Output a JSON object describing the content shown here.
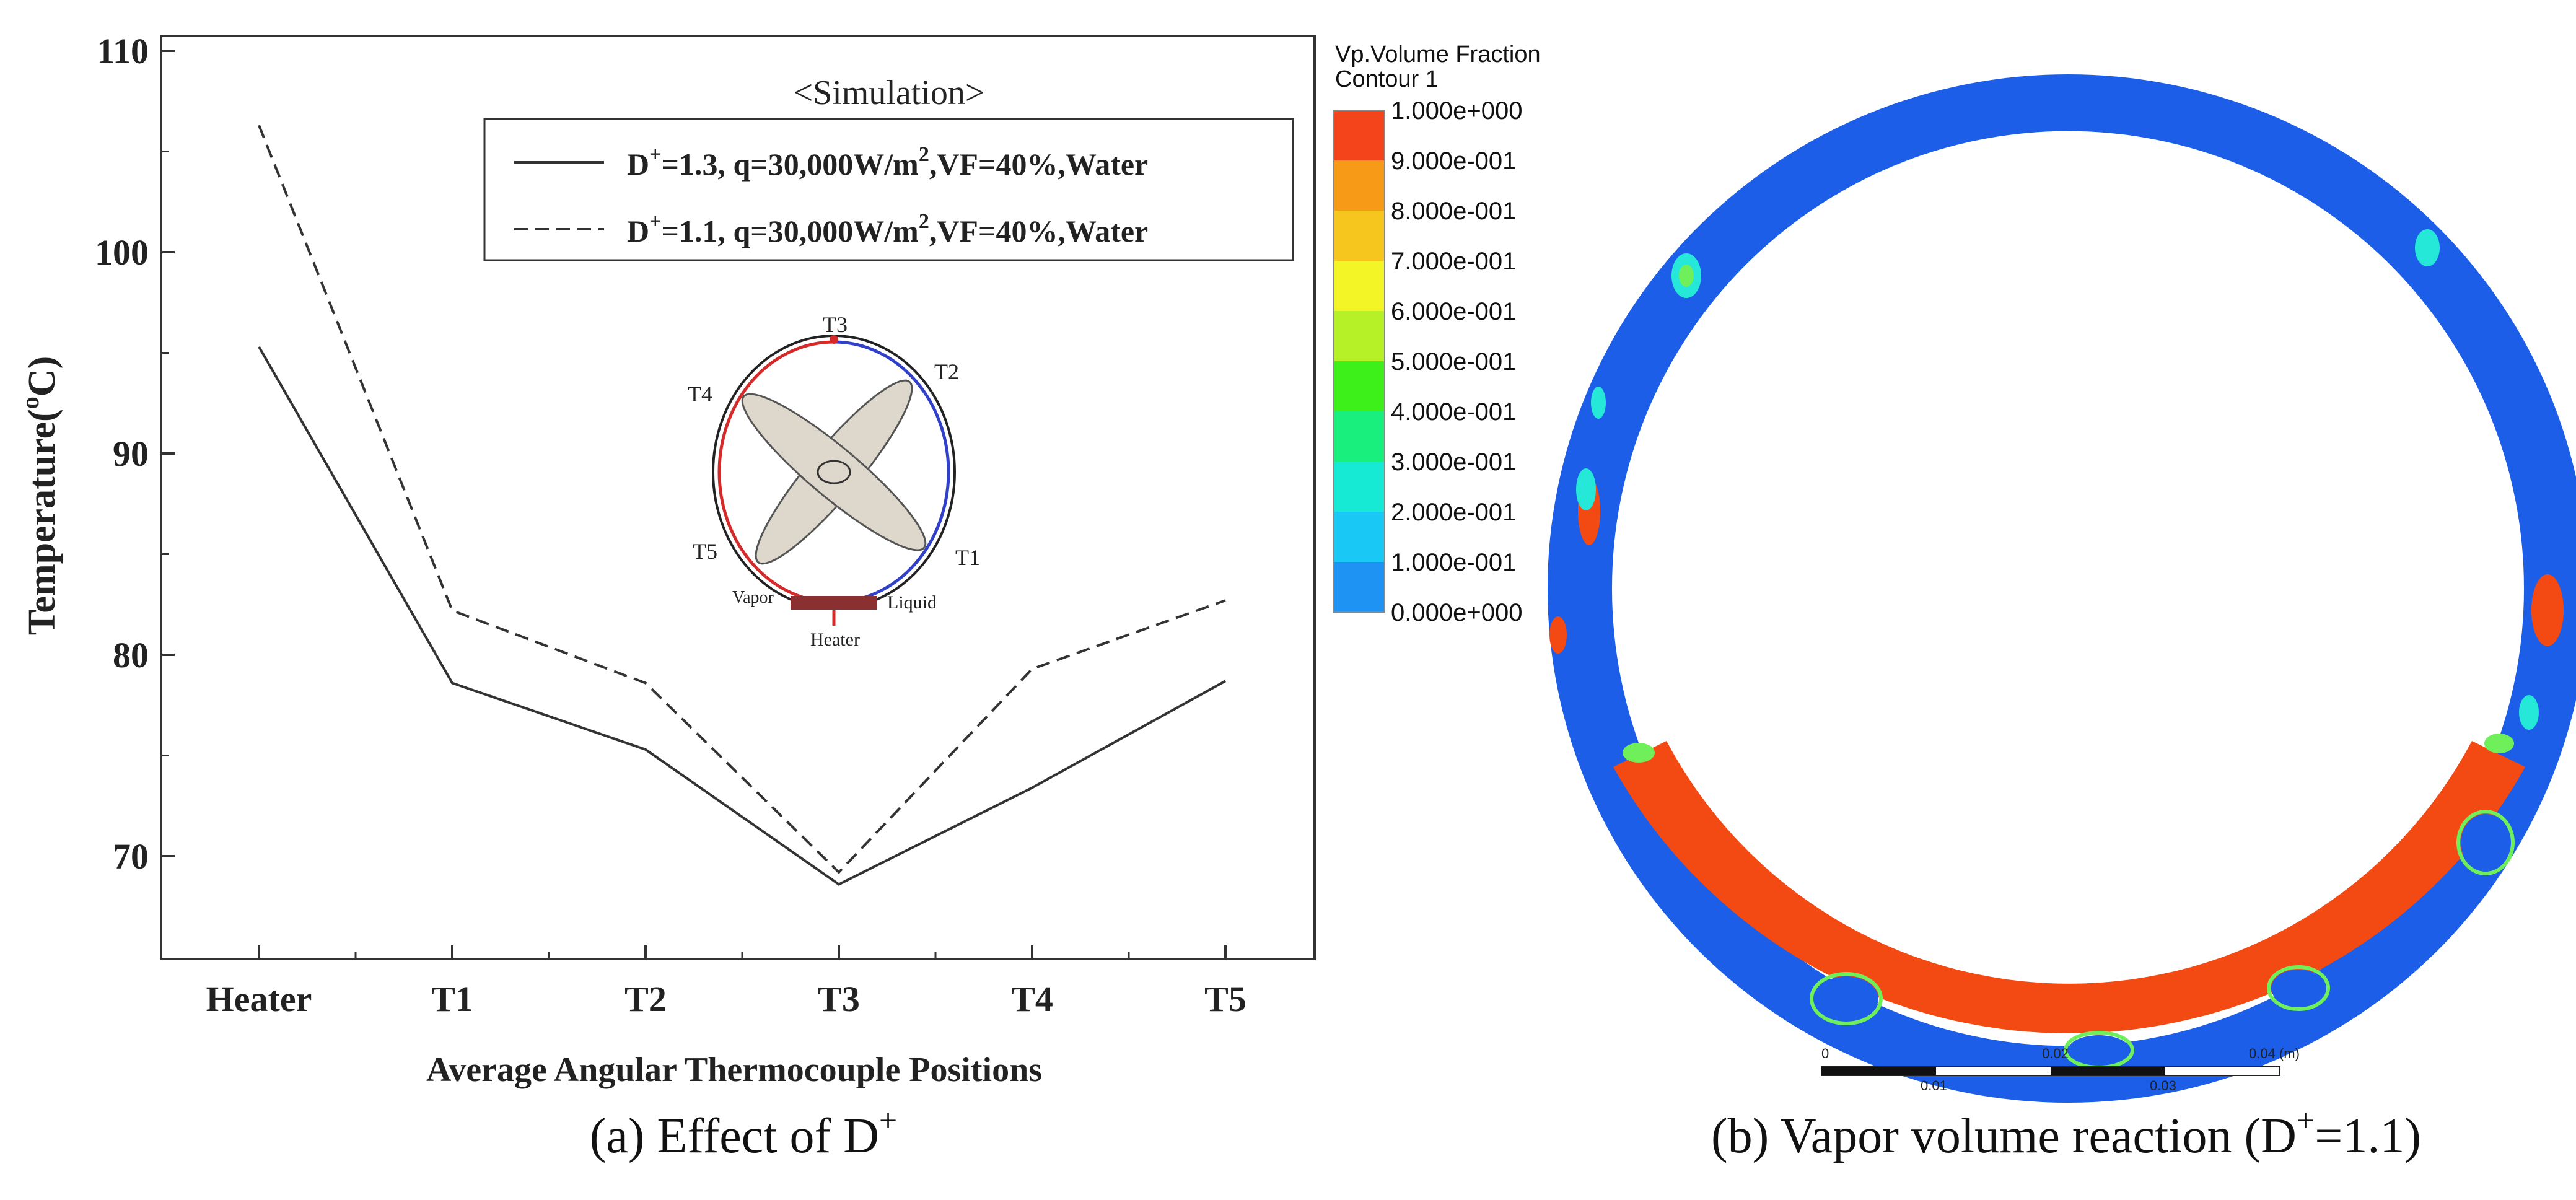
{
  "panel_a": {
    "caption": "(a) Effect of D",
    "caption_sup": "+"
  },
  "panel_b": {
    "caption": "(b) Vapor volume reaction (D",
    "caption_sup": "+",
    "caption_tail": "=1.1)",
    "colorbar": {
      "title_line1": "Vp.Volume Fraction",
      "title_line2": "Contour 1",
      "labels": [
        "1.000e+000",
        "9.000e-001",
        "8.000e-001",
        "7.000e-001",
        "6.000e-001",
        "5.000e-001",
        "4.000e-001",
        "3.000e-001",
        "2.000e-001",
        "1.000e-001",
        "0.000e+000"
      ],
      "colors": [
        "#f4441c",
        "#f79a17",
        "#f7c61e",
        "#f3f526",
        "#b6f027",
        "#3ef01a",
        "#18ef7d",
        "#16e9d4",
        "#19c8f5",
        "#1e93f4",
        "#1c4ce6"
      ]
    },
    "scale": {
      "top_labels": [
        "0",
        "0.02",
        "0.04  (m)"
      ],
      "bottom_labels": [
        "0.01",
        "0.03"
      ]
    },
    "ring_colors": {
      "liquid": "#1c5ee8",
      "vapor": "#f24a12",
      "mix1": "#26e8d8",
      "mix2": "#6ff05a"
    }
  },
  "chart_data": {
    "type": "line",
    "title": "<Simulation>",
    "xlabel": "Average Angular Thermocouple Positions",
    "ylabel": "Temperature(°C)",
    "ylabel_parts": {
      "base": "Temperature(",
      "sup": "o",
      "tail": "C)"
    },
    "categories": [
      "Heater",
      "T1",
      "T2",
      "T3",
      "T4",
      "T5"
    ],
    "yticks": [
      70,
      80,
      90,
      100,
      110
    ],
    "ylim": [
      65,
      110
    ],
    "series": [
      {
        "name": "D+=1.3, q=30,000W/m2,VF=40%,Water",
        "legend": {
          "pre": "D",
          "sup": "+",
          "mid": "=1.3, q=30,000W/m",
          "sup2": "2",
          "post": ",VF=40%,Water"
        },
        "style": "solid",
        "values": [
          95.3,
          78.6,
          75.3,
          68.6,
          73.4,
          78.7
        ]
      },
      {
        "name": "D+=1.1, q=30,000W/m2,VF=40%,Water",
        "legend": {
          "pre": "D",
          "sup": "+",
          "mid": "=1.1, q=30,000W/m",
          "sup2": "2",
          "post": ",VF=40%,Water"
        },
        "style": "dashed",
        "values": [
          106.3,
          82.2,
          78.6,
          69.2,
          79.3,
          82.7
        ]
      }
    ],
    "inset_labels": {
      "t3": "T3",
      "t2": "T2",
      "t4": "T4",
      "t5": "T5",
      "t1": "T1",
      "vapor": "Vapor",
      "liquid": "Liquid",
      "heater": "Heater"
    }
  }
}
